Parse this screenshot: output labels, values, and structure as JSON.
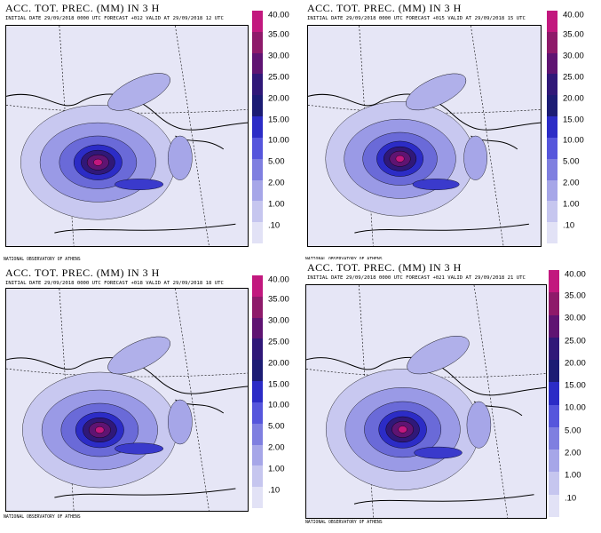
{
  "legend": {
    "labels": [
      "40.00",
      "35.00",
      "30.00",
      "25.00",
      "20.00",
      "15.00",
      "10.00",
      "5.00",
      "2.00",
      "1.00",
      ".10"
    ],
    "colors": [
      "#c2187e",
      "#8e1a6a",
      "#5f1472",
      "#301878",
      "#1c1c74",
      "#2c2cc6",
      "#5656dc",
      "#7f7fe0",
      "#a6a6e8",
      "#c6c6ef",
      "#e2e2f6"
    ]
  },
  "panels": [
    {
      "title": "ACC. TOT. PREC. (MM) IN 3 H",
      "subtitle": "INITIAL DATE 29/09/2018   0000 UTC  FORECAST +012 VALID AT   29/09/2018   12 UTC",
      "footer": "NATIONAL OBSERVATORY OF ATHENS"
    },
    {
      "title": "ACC. TOT. PREC. (MM) IN 3 H",
      "subtitle": "INITIAL DATE 29/09/2018   0000 UTC  FORECAST +015 VALID AT   29/09/2018   15 UTC",
      "footer": "NATIONAL OBSERVATORY OF ATHENS"
    },
    {
      "title": "ACC. TOT. PREC. (MM) IN 3 H",
      "subtitle": "INITIAL DATE 29/09/2018   0000 UTC  FORECAST +018 VALID AT   29/09/2018   18 UTC",
      "footer": "NATIONAL OBSERVATORY OF ATHENS"
    },
    {
      "title": "ACC. TOT. PREC. (MM) IN 3 H",
      "subtitle": "INITIAL DATE 29/09/2018   0000 UTC  FORECAST +021 VALID AT   29/09/2018   21 UTC",
      "footer": "NATIONAL OBSERVATORY OF ATHENS"
    }
  ]
}
